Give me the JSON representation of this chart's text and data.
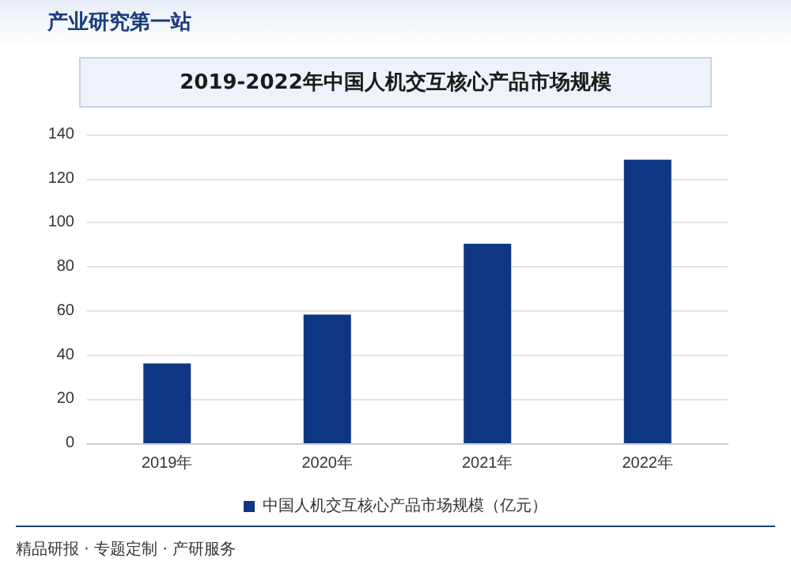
{
  "chart_data": {
    "type": "bar",
    "title": "2019-2022年中国人机交互核心产品市场规模",
    "categories": [
      "2019年",
      "2020年",
      "2021年",
      "2022年"
    ],
    "series": [
      {
        "name": "中国人机交互核心产品市场规模（亿元）",
        "color": "#0f3585",
        "values": [
          36.2,
          58.3,
          90.5,
          128.6
        ]
      }
    ],
    "ylim": [
      0,
      140
    ],
    "yticks": [
      0,
      20,
      40,
      60,
      80,
      100,
      120,
      140
    ],
    "grid": "y",
    "legend": "bottom",
    "annotations": [
      "产业研究第一站",
      "精品研报 · 专题定制 · 产研服务"
    ]
  }
}
